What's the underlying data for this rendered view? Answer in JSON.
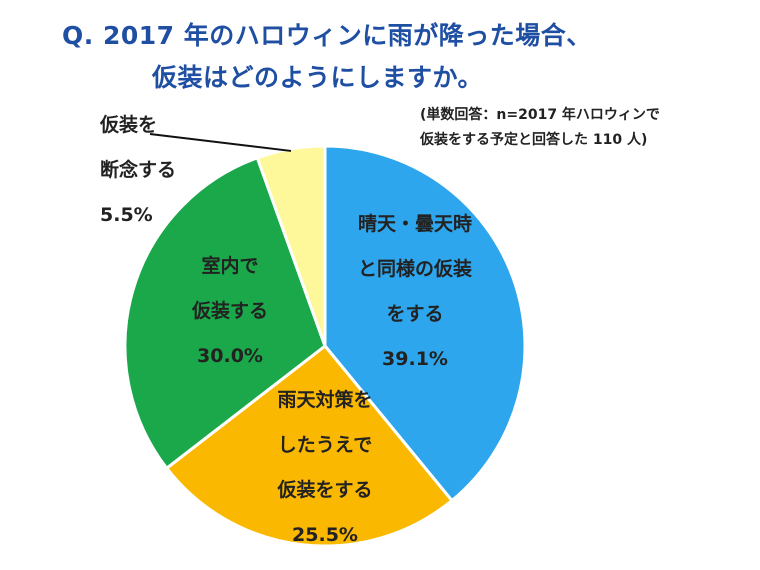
{
  "title": {
    "line1": "Q. 2017 年のハロウィンに雨が降った場合、",
    "line2": "仮装はどのようにしますか。"
  },
  "note": {
    "line1": "(単数回答：n=2017 年ハロウィンで",
    "line2": "仮装をする予定と回答した 110 人)"
  },
  "chart_data": {
    "type": "pie",
    "slices": [
      {
        "label_lines": [
          "晴天・曇天時",
          "と同様の仮装",
          "をする"
        ],
        "value": 39.1,
        "value_label": "39.1%",
        "color": "#2ea6ee"
      },
      {
        "label_lines": [
          "雨天対策を",
          "したうえで",
          "仮装をする"
        ],
        "value": 25.5,
        "value_label": "25.5%",
        "color": "#fbb800"
      },
      {
        "label_lines": [
          "室内で",
          "仮装する"
        ],
        "value": 30.0,
        "value_label": "30.0%",
        "color": "#1aa84a"
      },
      {
        "label_lines": [
          "仮装を",
          "断念する"
        ],
        "value": 5.5,
        "value_label": "5.5%",
        "color": "#fff89a"
      }
    ],
    "start_angle_deg": 0,
    "direction": "clockwise",
    "border_color": "#ffffff"
  }
}
